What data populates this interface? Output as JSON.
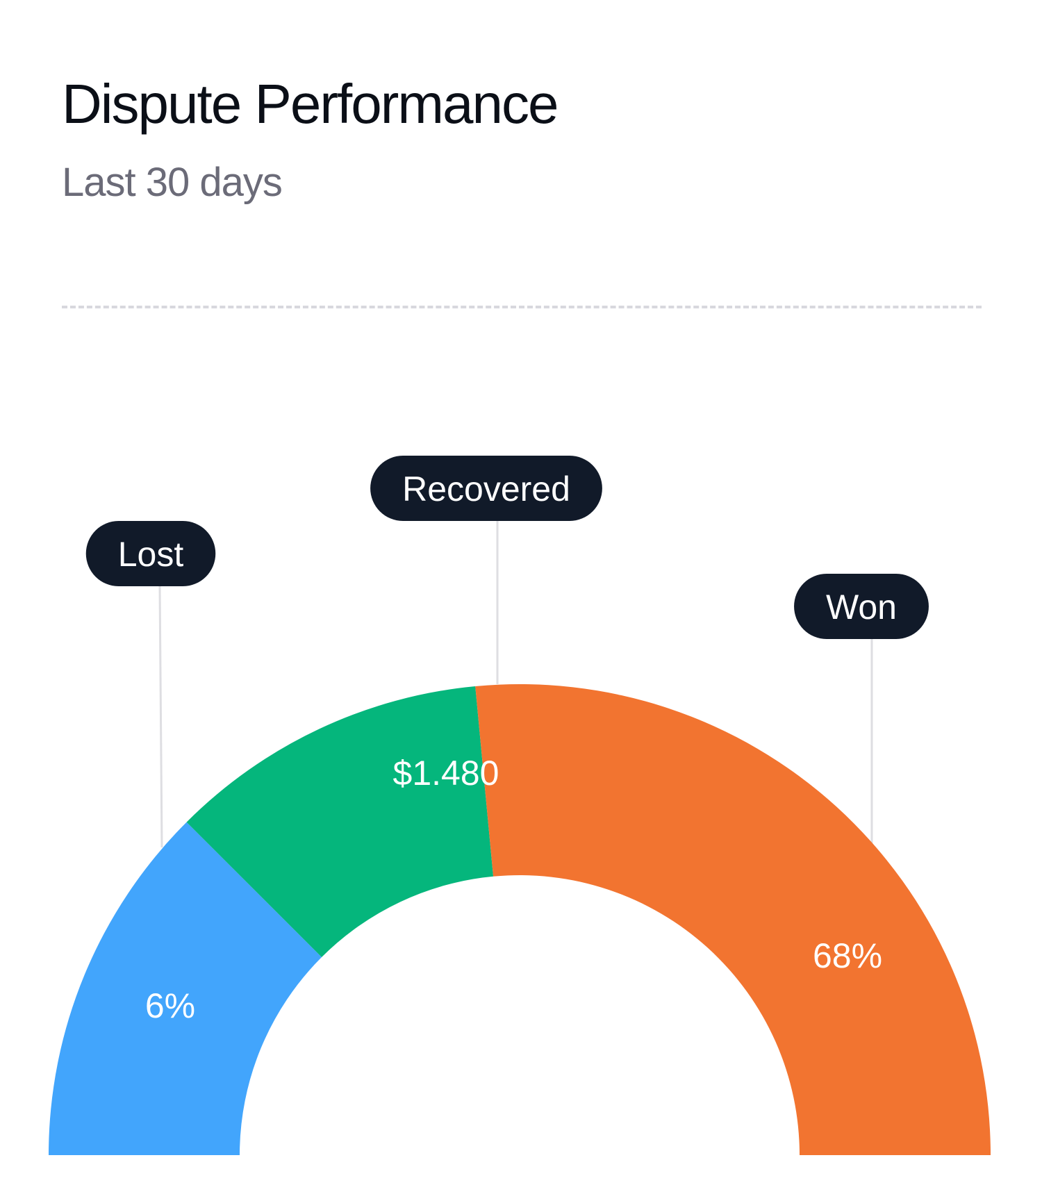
{
  "header": {
    "title": "Dispute Performance",
    "subtitle": "Last 30 days"
  },
  "chart_data": {
    "type": "pie",
    "style": "semi-donut",
    "title": "Dispute Performance",
    "subtitle": "Last 30 days",
    "categories": [
      "Lost",
      "Recovered",
      "Won"
    ],
    "values": [
      25,
      22,
      53
    ],
    "value_labels": [
      "6%",
      "$1.480",
      "68%"
    ],
    "colors": [
      "#42a5fc",
      "#05b67c",
      "#f27430"
    ],
    "legend": "callout-pills"
  }
}
